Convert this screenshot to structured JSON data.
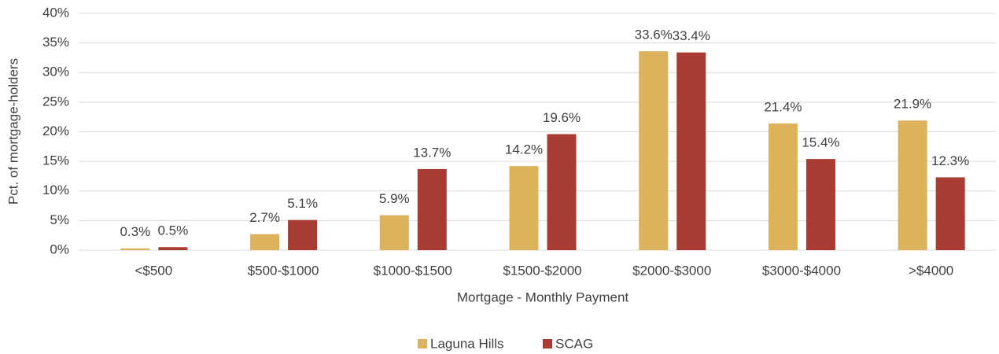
{
  "chart_data": {
    "type": "bar",
    "x_label": "Mortgage - Monthly Payment",
    "y_label": "Pct. of mortgage-holders",
    "categories": [
      "<$500",
      "$500-$1000",
      "$1000-$1500",
      "$1500-$2000",
      "$2000-$3000",
      "$3000-$4000",
      ">$4000"
    ],
    "series": [
      {
        "name": "Laguna Hills",
        "color": "#dcb25c",
        "values": [
          0.3,
          2.7,
          5.9,
          14.2,
          33.6,
          21.4,
          21.9
        ],
        "value_labels": [
          "0.3%",
          "2.7%",
          "5.9%",
          "14.2%",
          "33.6%",
          "21.4%",
          "21.9%"
        ]
      },
      {
        "name": "SCAG",
        "color": "#a83c32",
        "values": [
          0.5,
          5.1,
          13.7,
          19.6,
          33.4,
          15.4,
          12.3
        ],
        "value_labels": [
          "0.5%",
          "5.1%",
          "13.7%",
          "19.6%",
          "33.4%",
          "15.4%",
          "12.3%"
        ]
      }
    ],
    "ylim": [
      0,
      40
    ],
    "yticks": [
      {
        "value": 0,
        "label": "0%"
      },
      {
        "value": 5,
        "label": "5%"
      },
      {
        "value": 10,
        "label": "10%"
      },
      {
        "value": 15,
        "label": "15%"
      },
      {
        "value": 20,
        "label": "20%"
      },
      {
        "value": 25,
        "label": "25%"
      },
      {
        "value": 30,
        "label": "30%"
      },
      {
        "value": 35,
        "label": "35%"
      },
      {
        "value": 40,
        "label": "40%"
      }
    ],
    "grid": true,
    "legend": "bottom"
  }
}
